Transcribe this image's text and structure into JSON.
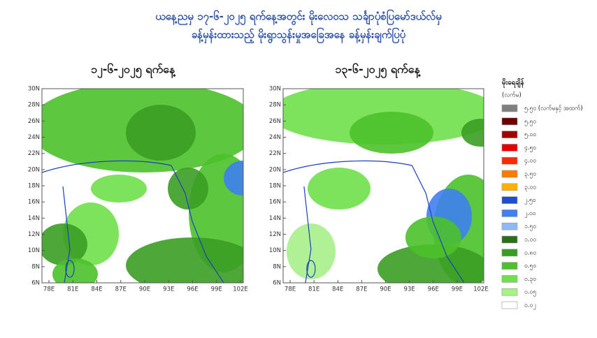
{
  "header": {
    "title_lines": [
      "ယနေ့ညမှ ၁၇-၆-၂၀၂၅ ရက်နေ့အတွင်း မိုးလေဝသ သင်္ချာပုံစံပြမော်ဒယ်လ်မှ",
      "ခန့်မှန်းထားသည့် မိုးရွာသွန်းမှုအခြေအနေ ခန့်မှန်းချက်ပြပုံ"
    ]
  },
  "maps": [
    {
      "title": "၁၂-၆-၂၀၂၅ ရက်နေ့",
      "lat_ticks": [
        "6N",
        "8N",
        "10N",
        "12N",
        "14N",
        "16N",
        "18N",
        "20N",
        "22N",
        "24N",
        "26N",
        "28N",
        "30N"
      ],
      "lon_ticks": [
        "78E",
        "81E",
        "84E",
        "87E",
        "90E",
        "93E",
        "96E",
        "99E",
        "102E"
      ]
    },
    {
      "title": "၁၃-၆-၂၀၂၅ ရက်နေ့",
      "lat_ticks": [
        "6N",
        "8N",
        "10N",
        "12N",
        "14N",
        "16N",
        "18N",
        "20N",
        "22N",
        "24N",
        "26N",
        "28N",
        "30N"
      ],
      "lon_ticks": [
        "78E",
        "81E",
        "84E",
        "87E",
        "90E",
        "93E",
        "96E",
        "99E",
        "102E"
      ]
    }
  ],
  "legend": {
    "title": "မိုးရေချိန်",
    "unit": "(လက်မ)",
    "items": [
      {
        "label": "၅.၅၀ (လက်မနှင့် အထက်)",
        "color": "#7f7f7f"
      },
      {
        "label": "၅.၅၀",
        "color": "#6b0000"
      },
      {
        "label": "၅.၀၀",
        "color": "#a50000"
      },
      {
        "label": "၄.၅၀",
        "color": "#e60000"
      },
      {
        "label": "၄.၀၀",
        "color": "#ff2a00"
      },
      {
        "label": "၃.၅၀",
        "color": "#ff7a00"
      },
      {
        "label": "၃.၀၀",
        "color": "#ffb000"
      },
      {
        "label": "၂.၅၀",
        "color": "#1f4fd1"
      },
      {
        "label": "၂.၀၀",
        "color": "#3f7ff0"
      },
      {
        "label": "၁.၅၀",
        "color": "#8fb8f5"
      },
      {
        "label": "၁.၀၀",
        "color": "#2a6e1a"
      },
      {
        "label": "၀.၈၀",
        "color": "#3a9d23"
      },
      {
        "label": "၀.၅၀",
        "color": "#4cc12b"
      },
      {
        "label": "၀.၃၀",
        "color": "#6fe04a"
      },
      {
        "label": "၀.၀၅",
        "color": "#a8f08a"
      },
      {
        "label": "၀.၀၂",
        "color": "#ffffff"
      }
    ]
  }
}
